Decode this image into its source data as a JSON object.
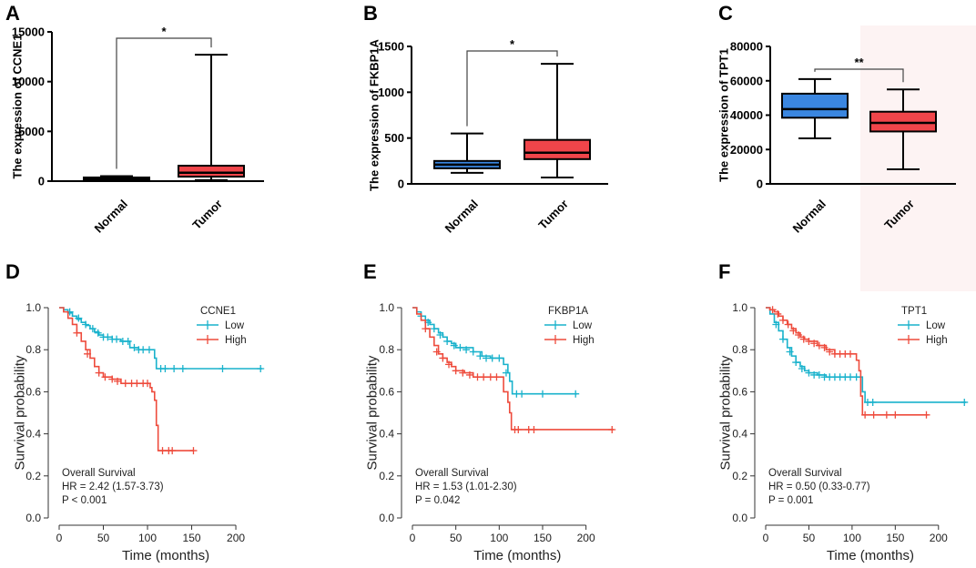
{
  "panels": [
    {
      "letter": "A",
      "type": "box",
      "ylabel": "The expression of CCNE1",
      "yticks": [
        0,
        5000,
        10000,
        15000
      ],
      "ylim": [
        0,
        15000
      ],
      "groups": [
        {
          "name": "Normal",
          "color": "#3a86e0",
          "min": 120,
          "q1": 220,
          "median": 290,
          "q3": 370,
          "max": 500
        },
        {
          "name": "Tumor",
          "color": "#f0454a",
          "min": 100,
          "q1": 450,
          "median": 850,
          "q3": 1550,
          "max": 12700
        }
      ],
      "significance": "*"
    },
    {
      "letter": "B",
      "type": "box",
      "ylabel": "The expression of FKBP1A",
      "yticks": [
        0,
        500,
        1000,
        1500
      ],
      "ylim": [
        0,
        1500
      ],
      "groups": [
        {
          "name": "Normal",
          "color": "#3a86e0",
          "min": 120,
          "q1": 170,
          "median": 210,
          "q3": 250,
          "max": 550
        },
        {
          "name": "Tumor",
          "color": "#f0454a",
          "min": 70,
          "q1": 270,
          "median": 340,
          "q3": 480,
          "max": 1310
        }
      ],
      "significance": "*"
    },
    {
      "letter": "C",
      "type": "box",
      "ylabel": "The expression of TPT1",
      "yticks": [
        0,
        20000,
        40000,
        60000,
        80000
      ],
      "ylim": [
        0,
        80000
      ],
      "groups": [
        {
          "name": "Normal",
          "color": "#3a86e0",
          "min": 26500,
          "q1": 38500,
          "median": 43500,
          "q3": 52500,
          "max": 61000
        },
        {
          "name": "Tumor",
          "color": "#f0454a",
          "min": 8500,
          "q1": 30500,
          "median": 35500,
          "q3": 42000,
          "max": 55000
        }
      ],
      "significance": "**"
    },
    {
      "letter": "D",
      "type": "km",
      "gene": "CCNE1",
      "xlabel": "Time (months)",
      "ylabel": "Survival probability",
      "xticks": [
        0,
        50,
        100,
        150,
        200
      ],
      "yticks": [
        "0.0",
        "0.2",
        "0.4",
        "0.6",
        "0.8",
        "1.0"
      ],
      "xlim": [
        0,
        235
      ],
      "ylim": [
        0,
        1.05
      ],
      "legend": [
        "Low",
        "High"
      ],
      "stats": [
        "Overall Survival",
        "HR = 2.42 (1.57-3.73)",
        "P < 0.001"
      ],
      "curves": [
        {
          "name": "Low",
          "color": "#19b2cc",
          "steps": [
            [
              0,
              1
            ],
            [
              5,
              0.99
            ],
            [
              10,
              0.975
            ],
            [
              15,
              0.96
            ],
            [
              20,
              0.945
            ],
            [
              25,
              0.93
            ],
            [
              30,
              0.915
            ],
            [
              35,
              0.9
            ],
            [
              40,
              0.885
            ],
            [
              45,
              0.87
            ],
            [
              50,
              0.86
            ],
            [
              60,
              0.85
            ],
            [
              70,
              0.84
            ],
            [
              80,
              0.81
            ],
            [
              90,
              0.8
            ],
            [
              100,
              0.8
            ],
            [
              107,
              0.8
            ],
            [
              108,
              0.76
            ],
            [
              110,
              0.71
            ],
            [
              230,
              0.71
            ]
          ],
          "censors": [
            [
              12,
              0.98
            ],
            [
              22,
              0.95
            ],
            [
              30,
              0.92
            ],
            [
              38,
              0.9
            ],
            [
              44,
              0.88
            ],
            [
              50,
              0.86
            ],
            [
              55,
              0.86
            ],
            [
              60,
              0.85
            ],
            [
              65,
              0.85
            ],
            [
              72,
              0.84
            ],
            [
              78,
              0.84
            ],
            [
              85,
              0.81
            ],
            [
              90,
              0.8
            ],
            [
              95,
              0.8
            ],
            [
              102,
              0.8
            ],
            [
              115,
              0.71
            ],
            [
              120,
              0.71
            ],
            [
              130,
              0.71
            ],
            [
              140,
              0.71
            ],
            [
              185,
              0.71
            ],
            [
              228,
              0.71
            ]
          ]
        },
        {
          "name": "High",
          "color": "#ee4b3c",
          "steps": [
            [
              0,
              1
            ],
            [
              5,
              0.98
            ],
            [
              10,
              0.95
            ],
            [
              15,
              0.92
            ],
            [
              20,
              0.88
            ],
            [
              25,
              0.84
            ],
            [
              30,
              0.8
            ],
            [
              35,
              0.76
            ],
            [
              40,
              0.72
            ],
            [
              45,
              0.69
            ],
            [
              50,
              0.67
            ],
            [
              60,
              0.66
            ],
            [
              70,
              0.64
            ],
            [
              90,
              0.64
            ],
            [
              100,
              0.64
            ],
            [
              103,
              0.62
            ],
            [
              105,
              0.6
            ],
            [
              108,
              0.56
            ],
            [
              110,
              0.44
            ],
            [
              112,
              0.32
            ],
            [
              152,
              0.32
            ]
          ],
          "censors": [
            [
              20,
              0.88
            ],
            [
              32,
              0.78
            ],
            [
              45,
              0.69
            ],
            [
              52,
              0.67
            ],
            [
              60,
              0.66
            ],
            [
              66,
              0.65
            ],
            [
              75,
              0.64
            ],
            [
              82,
              0.64
            ],
            [
              88,
              0.64
            ],
            [
              95,
              0.64
            ],
            [
              100,
              0.64
            ],
            [
              117,
              0.32
            ],
            [
              124,
              0.32
            ],
            [
              128,
              0.32
            ],
            [
              152,
              0.32
            ]
          ]
        }
      ]
    },
    {
      "letter": "E",
      "type": "km",
      "gene": "FKBP1A",
      "xlabel": "Time (months)",
      "ylabel": "Survival probability",
      "xticks": [
        0,
        50,
        100,
        150,
        200
      ],
      "yticks": [
        "0.0",
        "0.2",
        "0.4",
        "0.6",
        "0.8",
        "1.0"
      ],
      "xlim": [
        0,
        235
      ],
      "ylim": [
        0,
        1.05
      ],
      "legend": [
        "Low",
        "High"
      ],
      "stats": [
        "Overall Survival",
        "HR = 1.53 (1.01-2.30)",
        "P = 0.042"
      ],
      "curves": [
        {
          "name": "Low",
          "color": "#19b2cc",
          "steps": [
            [
              0,
              1
            ],
            [
              5,
              0.98
            ],
            [
              10,
              0.96
            ],
            [
              15,
              0.94
            ],
            [
              20,
              0.92
            ],
            [
              25,
              0.9
            ],
            [
              30,
              0.88
            ],
            [
              35,
              0.86
            ],
            [
              40,
              0.84
            ],
            [
              45,
              0.83
            ],
            [
              50,
              0.81
            ],
            [
              70,
              0.79
            ],
            [
              80,
              0.77
            ],
            [
              90,
              0.76
            ],
            [
              100,
              0.76
            ],
            [
              105,
              0.73
            ],
            [
              110,
              0.69
            ],
            [
              112,
              0.65
            ],
            [
              115,
              0.59
            ],
            [
              190,
              0.59
            ]
          ],
          "censors": [
            [
              10,
              0.96
            ],
            [
              18,
              0.93
            ],
            [
              25,
              0.9
            ],
            [
              32,
              0.87
            ],
            [
              40,
              0.84
            ],
            [
              48,
              0.82
            ],
            [
              55,
              0.81
            ],
            [
              62,
              0.8
            ],
            [
              70,
              0.79
            ],
            [
              78,
              0.77
            ],
            [
              85,
              0.76
            ],
            [
              92,
              0.76
            ],
            [
              100,
              0.76
            ],
            [
              108,
              0.69
            ],
            [
              120,
              0.59
            ],
            [
              126,
              0.59
            ],
            [
              150,
              0.59
            ],
            [
              188,
              0.59
            ]
          ]
        },
        {
          "name": "High",
          "color": "#ee4b3c",
          "steps": [
            [
              0,
              1
            ],
            [
              5,
              0.97
            ],
            [
              10,
              0.94
            ],
            [
              15,
              0.9
            ],
            [
              20,
              0.86
            ],
            [
              25,
              0.82
            ],
            [
              30,
              0.78
            ],
            [
              35,
              0.76
            ],
            [
              40,
              0.74
            ],
            [
              45,
              0.72
            ],
            [
              50,
              0.7
            ],
            [
              60,
              0.69
            ],
            [
              70,
              0.67
            ],
            [
              100,
              0.67
            ],
            [
              105,
              0.6
            ],
            [
              110,
              0.55
            ],
            [
              112,
              0.5
            ],
            [
              114,
              0.42
            ],
            [
              232,
              0.42
            ]
          ],
          "censors": [
            [
              15,
              0.9
            ],
            [
              28,
              0.79
            ],
            [
              35,
              0.76
            ],
            [
              42,
              0.73
            ],
            [
              50,
              0.7
            ],
            [
              58,
              0.69
            ],
            [
              66,
              0.68
            ],
            [
              75,
              0.67
            ],
            [
              82,
              0.67
            ],
            [
              90,
              0.67
            ],
            [
              97,
              0.67
            ],
            [
              118,
              0.42
            ],
            [
              122,
              0.42
            ],
            [
              134,
              0.42
            ],
            [
              140,
              0.42
            ],
            [
              230,
              0.42
            ]
          ]
        }
      ]
    },
    {
      "letter": "F",
      "type": "km",
      "gene": "TPT1",
      "xlabel": "Time (months)",
      "ylabel": "Survival probability",
      "xticks": [
        0,
        50,
        100,
        150,
        200
      ],
      "yticks": [
        "0.0",
        "0.2",
        "0.4",
        "0.6",
        "0.8",
        "1.0"
      ],
      "xlim": [
        0,
        235
      ],
      "ylim": [
        0,
        1.05
      ],
      "legend": [
        "Low",
        "High"
      ],
      "stats": [
        "Overall Survival",
        "HR = 0.50 (0.33-0.77)",
        "P = 0.001"
      ],
      "curves": [
        {
          "name": "Low",
          "color": "#19b2cc",
          "steps": [
            [
              0,
              1
            ],
            [
              5,
              0.97
            ],
            [
              10,
              0.93
            ],
            [
              15,
              0.89
            ],
            [
              20,
              0.85
            ],
            [
              25,
              0.81
            ],
            [
              30,
              0.77
            ],
            [
              35,
              0.74
            ],
            [
              40,
              0.72
            ],
            [
              45,
              0.7
            ],
            [
              50,
              0.69
            ],
            [
              60,
              0.68
            ],
            [
              70,
              0.67
            ],
            [
              100,
              0.67
            ],
            [
              108,
              0.67
            ],
            [
              112,
              0.6
            ],
            [
              115,
              0.55
            ],
            [
              232,
              0.55
            ]
          ],
          "censors": [
            [
              12,
              0.92
            ],
            [
              20,
              0.85
            ],
            [
              28,
              0.79
            ],
            [
              35,
              0.74
            ],
            [
              42,
              0.71
            ],
            [
              50,
              0.69
            ],
            [
              56,
              0.68
            ],
            [
              62,
              0.68
            ],
            [
              68,
              0.67
            ],
            [
              74,
              0.67
            ],
            [
              80,
              0.67
            ],
            [
              86,
              0.67
            ],
            [
              92,
              0.67
            ],
            [
              98,
              0.67
            ],
            [
              105,
              0.67
            ],
            [
              118,
              0.55
            ],
            [
              124,
              0.55
            ],
            [
              230,
              0.55
            ]
          ]
        },
        {
          "name": "High",
          "color": "#ee4b3c",
          "steps": [
            [
              0,
              1
            ],
            [
              5,
              0.99
            ],
            [
              10,
              0.98
            ],
            [
              15,
              0.96
            ],
            [
              20,
              0.94
            ],
            [
              25,
              0.92
            ],
            [
              30,
              0.9
            ],
            [
              35,
              0.88
            ],
            [
              40,
              0.86
            ],
            [
              45,
              0.85
            ],
            [
              50,
              0.84
            ],
            [
              60,
              0.82
            ],
            [
              70,
              0.8
            ],
            [
              80,
              0.78
            ],
            [
              100,
              0.78
            ],
            [
              105,
              0.75
            ],
            [
              108,
              0.7
            ],
            [
              110,
              0.58
            ],
            [
              112,
              0.49
            ],
            [
              188,
              0.49
            ]
          ],
          "censors": [
            [
              8,
              0.99
            ],
            [
              14,
              0.97
            ],
            [
              20,
              0.94
            ],
            [
              26,
              0.92
            ],
            [
              32,
              0.89
            ],
            [
              38,
              0.87
            ],
            [
              44,
              0.85
            ],
            [
              50,
              0.84
            ],
            [
              56,
              0.83
            ],
            [
              62,
              0.82
            ],
            [
              68,
              0.81
            ],
            [
              74,
              0.79
            ],
            [
              80,
              0.78
            ],
            [
              86,
              0.78
            ],
            [
              92,
              0.78
            ],
            [
              98,
              0.78
            ],
            [
              115,
              0.49
            ],
            [
              125,
              0.49
            ],
            [
              140,
              0.49
            ],
            [
              150,
              0.49
            ],
            [
              186,
              0.49
            ]
          ]
        }
      ]
    }
  ]
}
